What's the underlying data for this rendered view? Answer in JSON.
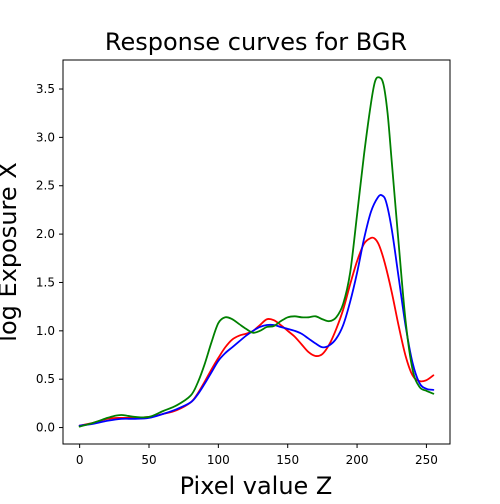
{
  "chart_data": {
    "type": "line",
    "title": "Response curves for BGR",
    "xlabel": "Pixel value Z",
    "ylabel": "log Exposure X",
    "xlim": [
      -12,
      267
    ],
    "ylim": [
      -0.17,
      3.8
    ],
    "xticks": [
      0,
      50,
      100,
      150,
      200,
      250
    ],
    "xtick_labels": [
      "0",
      "50",
      "100",
      "150",
      "200",
      "250"
    ],
    "yticks": [
      0.0,
      0.5,
      1.0,
      1.5,
      2.0,
      2.5,
      3.0,
      3.5
    ],
    "ytick_labels": [
      "0.0",
      "0.5",
      "1.0",
      "1.5",
      "2.0",
      "2.5",
      "3.0",
      "3.5"
    ],
    "grid": false,
    "legend": false,
    "series": [
      {
        "color": "#ff0000",
        "x": [
          0,
          10,
          20,
          30,
          40,
          50,
          60,
          70,
          80,
          85,
          90,
          95,
          100,
          105,
          110,
          115,
          120,
          125,
          130,
          135,
          140,
          145,
          150,
          155,
          160,
          165,
          170,
          175,
          180,
          185,
          190,
          195,
          200,
          205,
          210,
          213,
          216,
          220,
          225,
          230,
          235,
          240,
          245,
          250,
          255
        ],
        "y": [
          0.02,
          0.05,
          0.09,
          0.1,
          0.1,
          0.11,
          0.14,
          0.18,
          0.26,
          0.35,
          0.47,
          0.6,
          0.72,
          0.83,
          0.91,
          0.95,
          0.97,
          1.0,
          1.06,
          1.12,
          1.11,
          1.06,
          1.0,
          0.94,
          0.86,
          0.78,
          0.74,
          0.76,
          0.86,
          1.02,
          1.22,
          1.48,
          1.72,
          1.9,
          1.96,
          1.95,
          1.88,
          1.7,
          1.4,
          1.05,
          0.74,
          0.54,
          0.48,
          0.49,
          0.54
        ]
      },
      {
        "color": "#0000ff",
        "x": [
          0,
          10,
          20,
          30,
          40,
          50,
          60,
          70,
          80,
          85,
          90,
          95,
          100,
          105,
          110,
          115,
          120,
          125,
          130,
          135,
          140,
          145,
          150,
          155,
          160,
          165,
          170,
          175,
          180,
          185,
          190,
          195,
          200,
          205,
          210,
          215,
          218,
          221,
          225,
          230,
          235,
          240,
          245,
          250,
          255
        ],
        "y": [
          0.02,
          0.04,
          0.07,
          0.09,
          0.09,
          0.1,
          0.14,
          0.19,
          0.26,
          0.34,
          0.45,
          0.57,
          0.69,
          0.77,
          0.83,
          0.89,
          0.95,
          1.0,
          1.04,
          1.06,
          1.06,
          1.04,
          1.02,
          1.0,
          0.97,
          0.92,
          0.87,
          0.83,
          0.85,
          0.92,
          1.06,
          1.3,
          1.6,
          1.95,
          2.23,
          2.38,
          2.4,
          2.33,
          2.05,
          1.55,
          1.05,
          0.67,
          0.46,
          0.4,
          0.39
        ]
      },
      {
        "color": "#008000",
        "x": [
          0,
          10,
          20,
          25,
          30,
          35,
          40,
          50,
          60,
          70,
          80,
          85,
          90,
          95,
          100,
          105,
          110,
          115,
          120,
          125,
          130,
          135,
          140,
          145,
          150,
          155,
          160,
          165,
          170,
          175,
          180,
          185,
          190,
          195,
          200,
          205,
          210,
          213,
          216,
          219,
          222,
          225,
          230,
          235,
          240,
          245,
          250,
          255
        ],
        "y": [
          0.01,
          0.05,
          0.1,
          0.12,
          0.13,
          0.12,
          0.11,
          0.11,
          0.17,
          0.23,
          0.33,
          0.46,
          0.65,
          0.88,
          1.08,
          1.14,
          1.12,
          1.07,
          1.02,
          0.98,
          1.0,
          1.04,
          1.05,
          1.1,
          1.14,
          1.15,
          1.14,
          1.14,
          1.15,
          1.12,
          1.1,
          1.14,
          1.28,
          1.6,
          2.2,
          2.82,
          3.35,
          3.58,
          3.62,
          3.55,
          3.25,
          2.75,
          1.9,
          1.1,
          0.6,
          0.42,
          0.38,
          0.35
        ]
      }
    ]
  }
}
